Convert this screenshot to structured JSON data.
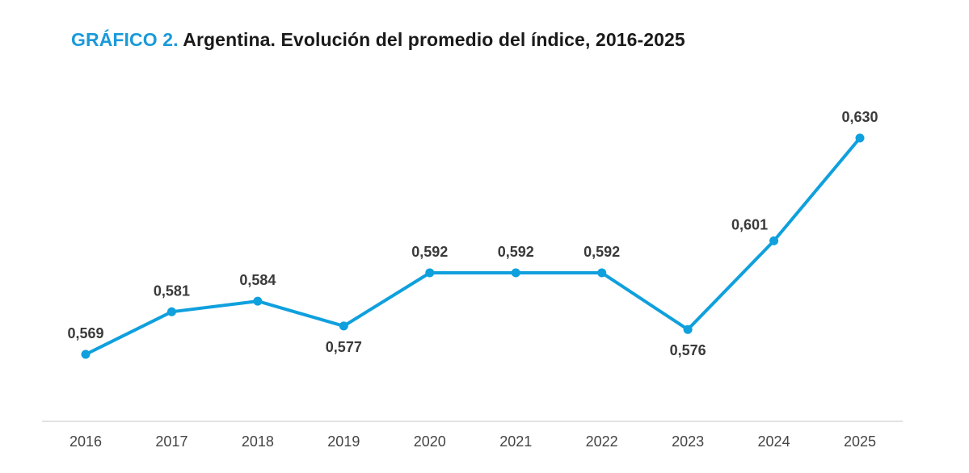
{
  "header": {
    "title_prefix": "GRÁFICO 2.",
    "title_text": "Argentina. Evolución del promedio del índice, 2016-2025"
  },
  "colors": {
    "accent": "#1a9ad9",
    "line": "#0fa0dd",
    "axis": "#d9d9d9"
  },
  "chart_data": {
    "type": "line",
    "categories": [
      "2016",
      "2017",
      "2018",
      "2019",
      "2020",
      "2021",
      "2022",
      "2023",
      "2024",
      "2025"
    ],
    "values": [
      0.569,
      0.581,
      0.584,
      0.577,
      0.592,
      0.592,
      0.592,
      0.576,
      0.601,
      0.63
    ],
    "data_labels": [
      "0,569",
      "0,581",
      "0,584",
      "0,577",
      "0,592",
      "0,592",
      "0,592",
      "0,576",
      "0,601",
      "0,630"
    ],
    "label_positions": [
      "above",
      "above",
      "above",
      "below",
      "above",
      "above",
      "above",
      "below",
      "above-left",
      "above"
    ],
    "title": "Argentina. Evolución del promedio del índice, 2016-2025",
    "xlabel": "",
    "ylabel": "",
    "ylim": [
      0.545,
      0.64
    ],
    "grid": false,
    "legend": "none"
  }
}
